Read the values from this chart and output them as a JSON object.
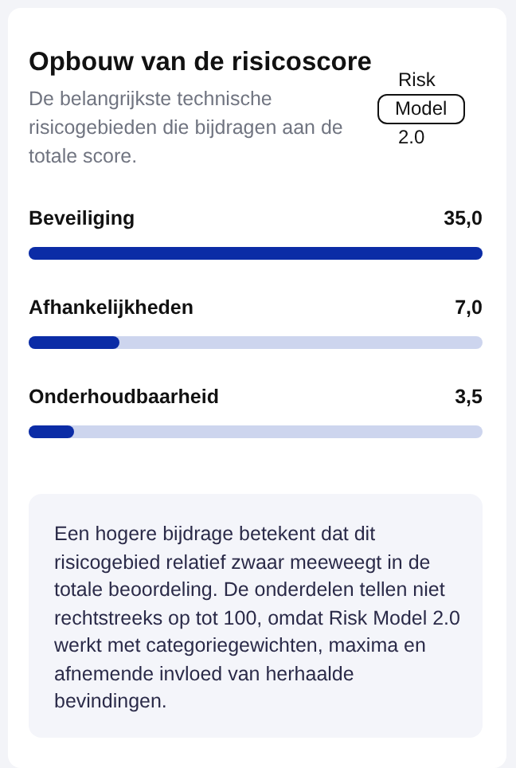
{
  "chart_data": {
    "type": "bar",
    "orientation": "horizontal",
    "title": "Opbouw van de risicoscore",
    "subtitle": "De belangrijkste technische risicogebieden die bijdragen aan de totale score.",
    "categories": [
      "Beveiliging",
      "Afhankelijkheden",
      "Onderhoudbaarheid"
    ],
    "values": [
      35,
      7,
      3.5
    ],
    "value_labels": [
      "35,0",
      "7,0",
      "3,5"
    ],
    "color": "#0b2ca6",
    "annotations": [
      "Risk Model 2.0",
      "Een hogere bijdrage betekent dat dit risicogebied relatief zwaar meeweegt in de totale beoordeling. De onderdelen tellen niet rechtstreeks op tot 100, omdat Risk Model 2.0 werkt met categoriegewichten, maxima en afnemende invloed van herhaalde bevindingen."
    ]
  }
}
